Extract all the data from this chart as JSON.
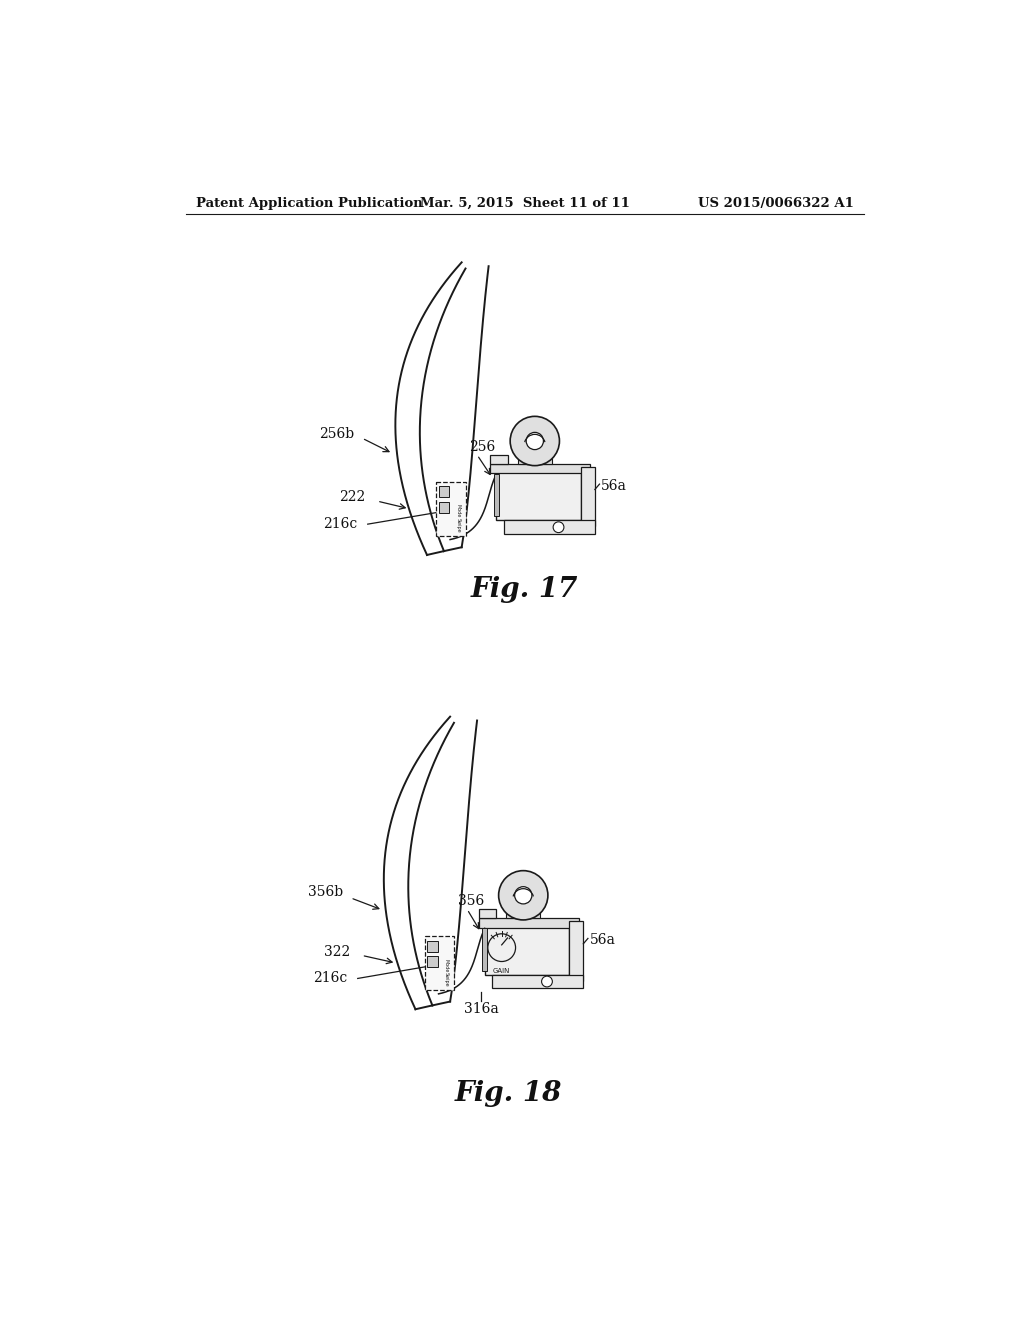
{
  "background_color": "#ffffff",
  "header_left": "Patent Application Publication",
  "header_center": "Mar. 5, 2015  Sheet 11 of 11",
  "header_right": "US 2015/0066322 A1",
  "fig17_label": "Fig. 17",
  "fig18_label": "Fig. 18",
  "line_color": "#1a1a1a",
  "text_color": "#111111"
}
